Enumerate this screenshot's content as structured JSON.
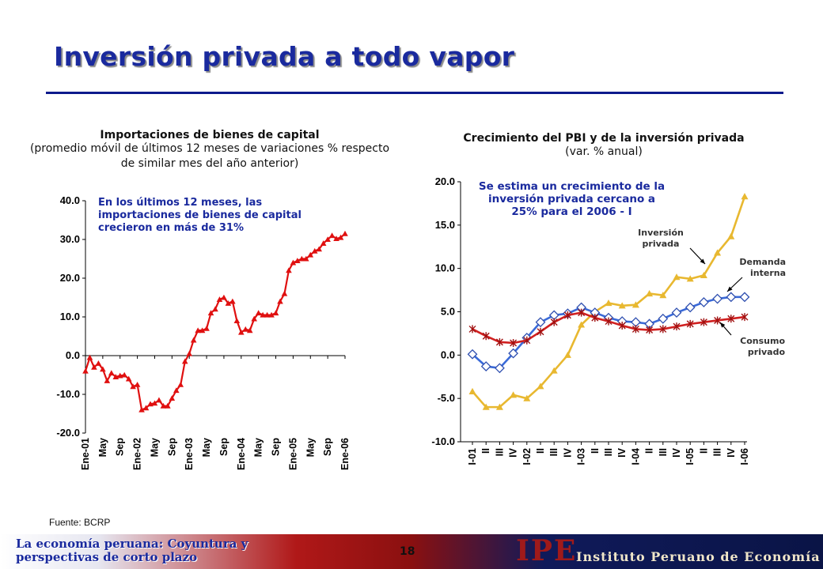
{
  "slide": {
    "title": "Inversión privada a todo vapor",
    "source": "Fuente: BCRP",
    "footer_left": "La economía peruana: Coyuntura y perspectivas de corto plazo",
    "page_number": "18",
    "logo": "IPE",
    "institute": "Instituto Peruano de Economía",
    "title_color": "#1a2a9e"
  },
  "chart_data": [
    {
      "type": "line",
      "title": "Importaciones de bienes de capital",
      "subtitle": "(promedio móvil de últimos 12 meses de variaciones % respecto de similar mes del año anterior)",
      "annotation": "En los últimos 12 meses, las importaciones de bienes de capital crecieron en más de 31%",
      "ylim": [
        -20,
        40
      ],
      "yticks": [
        "40.0",
        "30.0",
        "20.0",
        "10.0",
        "0.0",
        "-10.0",
        "-20.0"
      ],
      "xticks": [
        "Ene-01",
        "May",
        "Sep",
        "Ene-02",
        "May",
        "Sep",
        "Ene-03",
        "May",
        "Sep",
        "Ene-04",
        "May",
        "Sep",
        "Ene-05",
        "May",
        "Sep",
        "Ene-06"
      ],
      "color": "#e01010",
      "series": [
        {
          "values": [
            -4,
            -0.5,
            -3,
            -2,
            -3.5,
            -6.5,
            -4.5,
            -5.5,
            -5.2,
            -5,
            -6,
            -8,
            -7.5,
            -14,
            -13.5,
            -12.5,
            -12.3,
            -11.5,
            -13,
            -13,
            -11,
            -9,
            -7.5,
            -1.5,
            0.5,
            4,
            6.5,
            6.5,
            7,
            11,
            12,
            14.5,
            15,
            13.5,
            14,
            9,
            6,
            6.8,
            6.5,
            9.5,
            11,
            10.5,
            10.5,
            10.5,
            11,
            14,
            16,
            22,
            24,
            24.5,
            25,
            25,
            26,
            27,
            27.5,
            29,
            30,
            31,
            30.2,
            30.5,
            31.5
          ]
        }
      ]
    },
    {
      "type": "line",
      "title": "Crecimiento del PBI y de la inversión privada",
      "subtitle": "(var. % anual)",
      "annotation": "Se estima un crecimiento de la inversión privada cercano a 25% para el 2006 - I",
      "ylim": [
        -10,
        20
      ],
      "yticks": [
        "20.0",
        "15.0",
        "10.0",
        "5.0",
        "0.0",
        "-5.0",
        "-10.0"
      ],
      "xticks": [
        "I-01",
        "II",
        "III",
        "IV",
        "I-02",
        "II",
        "III",
        "IV",
        "I-03",
        "II",
        "III",
        "IV",
        "I-04",
        "II",
        "III",
        "IV",
        "I-05",
        "II",
        "III",
        "IV",
        "I-06"
      ],
      "series": [
        {
          "name": "Inversión privada",
          "color": "#e8b830",
          "values": [
            -4.2,
            -6,
            -6,
            -4.6,
            -5,
            -3.6,
            -1.8,
            0,
            3.5,
            5,
            6,
            5.7,
            5.8,
            7.1,
            6.9,
            9,
            8.8,
            9.2,
            11.8,
            13.7,
            18.3
          ]
        },
        {
          "name": "Demanda interna",
          "color": "#3a6ad8",
          "values": [
            0.1,
            -1.3,
            -1.5,
            0.2,
            2,
            3.8,
            4.6,
            4.8,
            5.5,
            4.9,
            4.3,
            3.9,
            3.8,
            3.6,
            4.2,
            4.9,
            5.5,
            6.1,
            6.5,
            6.7,
            6.7
          ]
        },
        {
          "name": "Consumo privado",
          "color": "#d02020",
          "values": [
            3,
            2.2,
            1.5,
            1.4,
            1.7,
            2.7,
            3.8,
            4.6,
            4.9,
            4.3,
            3.9,
            3.4,
            3,
            2.9,
            3,
            3.3,
            3.6,
            3.8,
            4,
            4.2,
            4.4
          ]
        }
      ]
    }
  ]
}
